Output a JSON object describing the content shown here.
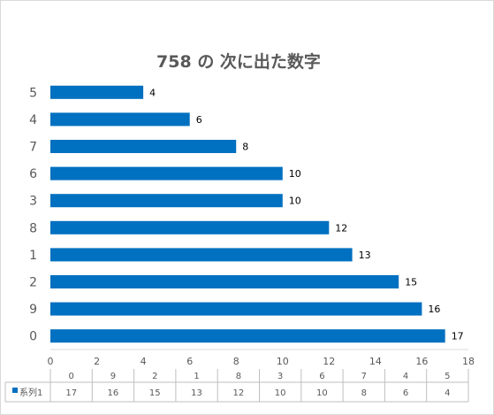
{
  "chart_data": {
    "type": "bar",
    "orientation": "horizontal",
    "title": "758 の 次に出た数字",
    "categories": [
      "5",
      "4",
      "7",
      "6",
      "3",
      "8",
      "1",
      "2",
      "9",
      "0"
    ],
    "series": [
      {
        "name": "系列1",
        "values": [
          4,
          6,
          8,
          10,
          10,
          12,
          13,
          15,
          16,
          17
        ],
        "color": "#0070c0"
      }
    ],
    "xlim": [
      0,
      18
    ],
    "x_ticks": [
      0,
      2,
      4,
      6,
      8,
      10,
      12,
      14,
      16,
      18
    ],
    "data_table": {
      "categories": [
        "0",
        "9",
        "2",
        "1",
        "8",
        "3",
        "6",
        "7",
        "4",
        "5"
      ],
      "values": [
        17,
        16,
        15,
        13,
        12,
        10,
        10,
        8,
        6,
        4
      ]
    },
    "grid": false,
    "legend": "data-table"
  }
}
